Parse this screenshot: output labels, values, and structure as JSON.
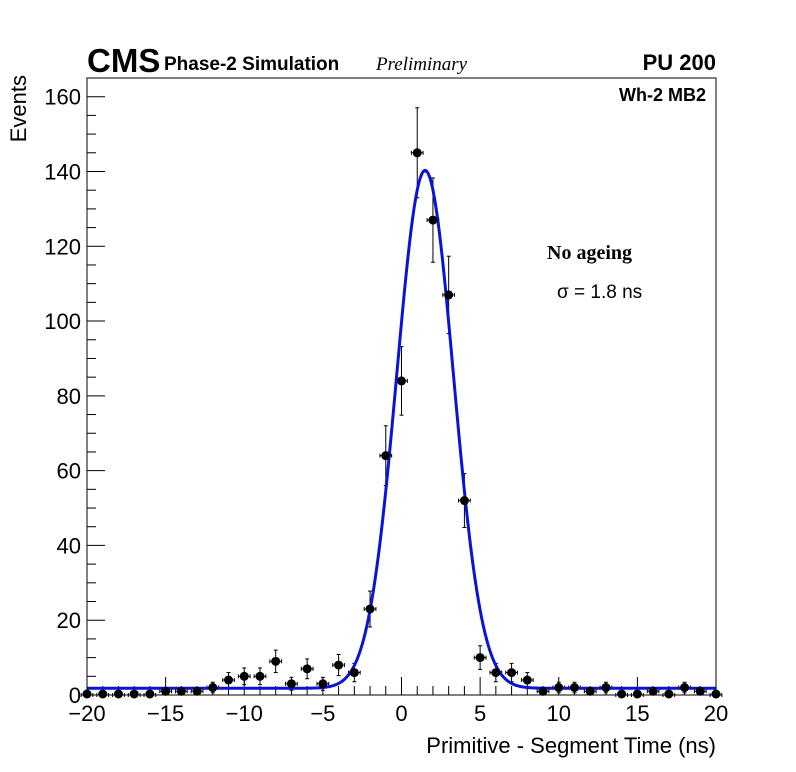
{
  "header": {
    "experiment": "CMS",
    "label": "Phase-2 Simulation",
    "status": "Preliminary",
    "pileup": "PU 200"
  },
  "annotations": {
    "station": "Wh-2 MB2",
    "condition": "No ageing",
    "sigma": "σ = 1.8 ns"
  },
  "chart_data": {
    "type": "scatter",
    "title": "",
    "xlabel": "Primitive - Segment Time (ns)",
    "ylabel": "Events",
    "xlim": [
      -20,
      20
    ],
    "ylim": [
      0,
      165
    ],
    "grid": false,
    "xticks": [
      -20,
      -15,
      -10,
      -5,
      0,
      5,
      10,
      15,
      20
    ],
    "yticks": [
      0,
      20,
      40,
      60,
      80,
      100,
      120,
      140,
      160
    ],
    "bin_width": 1,
    "series": [
      {
        "name": "",
        "style": "points-with-errors",
        "color": "#000000",
        "x": [
          -20,
          -19,
          -18,
          -17,
          -16,
          -15,
          -14,
          -13,
          -12,
          -11,
          -10,
          -9,
          -8,
          -7,
          -6,
          -5,
          -4,
          -3,
          -2,
          -1,
          0,
          1,
          2,
          3,
          4,
          5,
          6,
          7,
          8,
          9,
          10,
          11,
          12,
          13,
          14,
          15,
          16,
          17,
          18,
          19,
          20
        ],
        "values": [
          0,
          0,
          0,
          0,
          0,
          1,
          1,
          1,
          2,
          4,
          5,
          5,
          9,
          3,
          7,
          3,
          8,
          6,
          23,
          64,
          84,
          145,
          127,
          107,
          52,
          10,
          6,
          6,
          4,
          1,
          2,
          2,
          1,
          2,
          0,
          0,
          1,
          0,
          2,
          1,
          0
        ]
      },
      {
        "name": "",
        "style": "gaussian-fit",
        "color": "#0a14d8",
        "mean": 1.5,
        "sigma": 1.8,
        "amplitude": 138.5,
        "baseline": 1.8
      }
    ]
  }
}
